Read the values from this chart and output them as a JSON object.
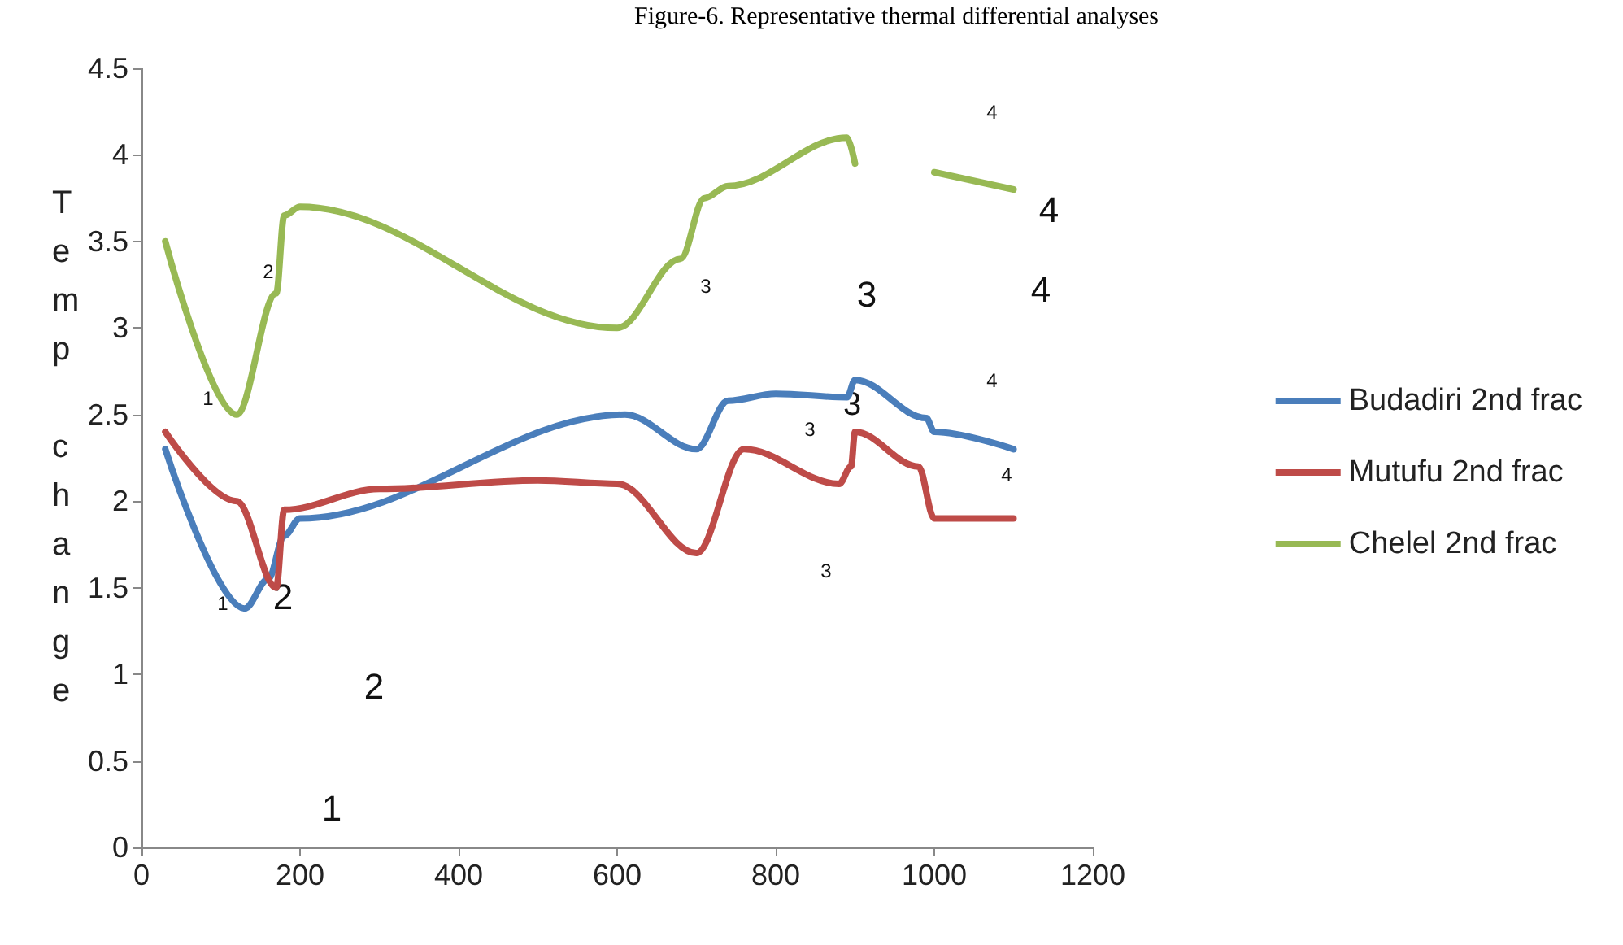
{
  "chart_data": {
    "type": "line",
    "title": "Figure-6. Representative thermal differential analyses",
    "ylabel": "Temp change",
    "xlim": [
      0,
      1200
    ],
    "xticks": [
      0,
      200,
      400,
      600,
      800,
      1000,
      1200
    ],
    "ylim": [
      0,
      4.5
    ],
    "yticks": [
      0,
      0.5,
      1,
      1.5,
      2,
      2.5,
      3,
      3.5,
      4,
      4.5
    ],
    "grid": false,
    "legend": "right",
    "marker": "none",
    "line_style": "solid",
    "series": [
      {
        "name": "Budadiri 2nd frac",
        "color": "#4a7ebb",
        "x": [
          30,
          130,
          160,
          180,
          200,
          610,
          700,
          740,
          800,
          890,
          900,
          990,
          1000,
          1100
        ],
        "values": [
          2.3,
          1.38,
          1.55,
          1.8,
          1.9,
          2.5,
          2.3,
          2.58,
          2.62,
          2.6,
          2.7,
          2.48,
          2.4,
          2.3
        ]
      },
      {
        "name": "Mutufu 2nd frac",
        "color": "#be4b48",
        "x": [
          30,
          120,
          170,
          180,
          300,
          500,
          600,
          700,
          760,
          880,
          895,
          900,
          980,
          1000,
          1100
        ],
        "values": [
          2.4,
          2.0,
          1.5,
          1.95,
          2.07,
          2.12,
          2.1,
          1.7,
          2.3,
          2.1,
          2.2,
          2.4,
          2.2,
          1.9,
          1.9
        ]
      },
      {
        "name": "Chelel 2nd frac",
        "color": "#98b954",
        "x": [
          30,
          120,
          170,
          180,
          200,
          600,
          680,
          710,
          740,
          890,
          900,
          950,
          1000,
          1100
        ],
        "values": [
          3.5,
          2.5,
          3.2,
          3.65,
          3.7,
          3.0,
          3.4,
          3.75,
          3.82,
          4.1,
          3.95,
          null,
          3.9,
          3.8
        ]
      }
    ],
    "annotations": [
      "1",
      "2",
      "3",
      "3",
      "4",
      "4",
      "4",
      "4",
      "4",
      "3",
      "3",
      "3",
      "1",
      "2",
      "2",
      "1"
    ]
  }
}
